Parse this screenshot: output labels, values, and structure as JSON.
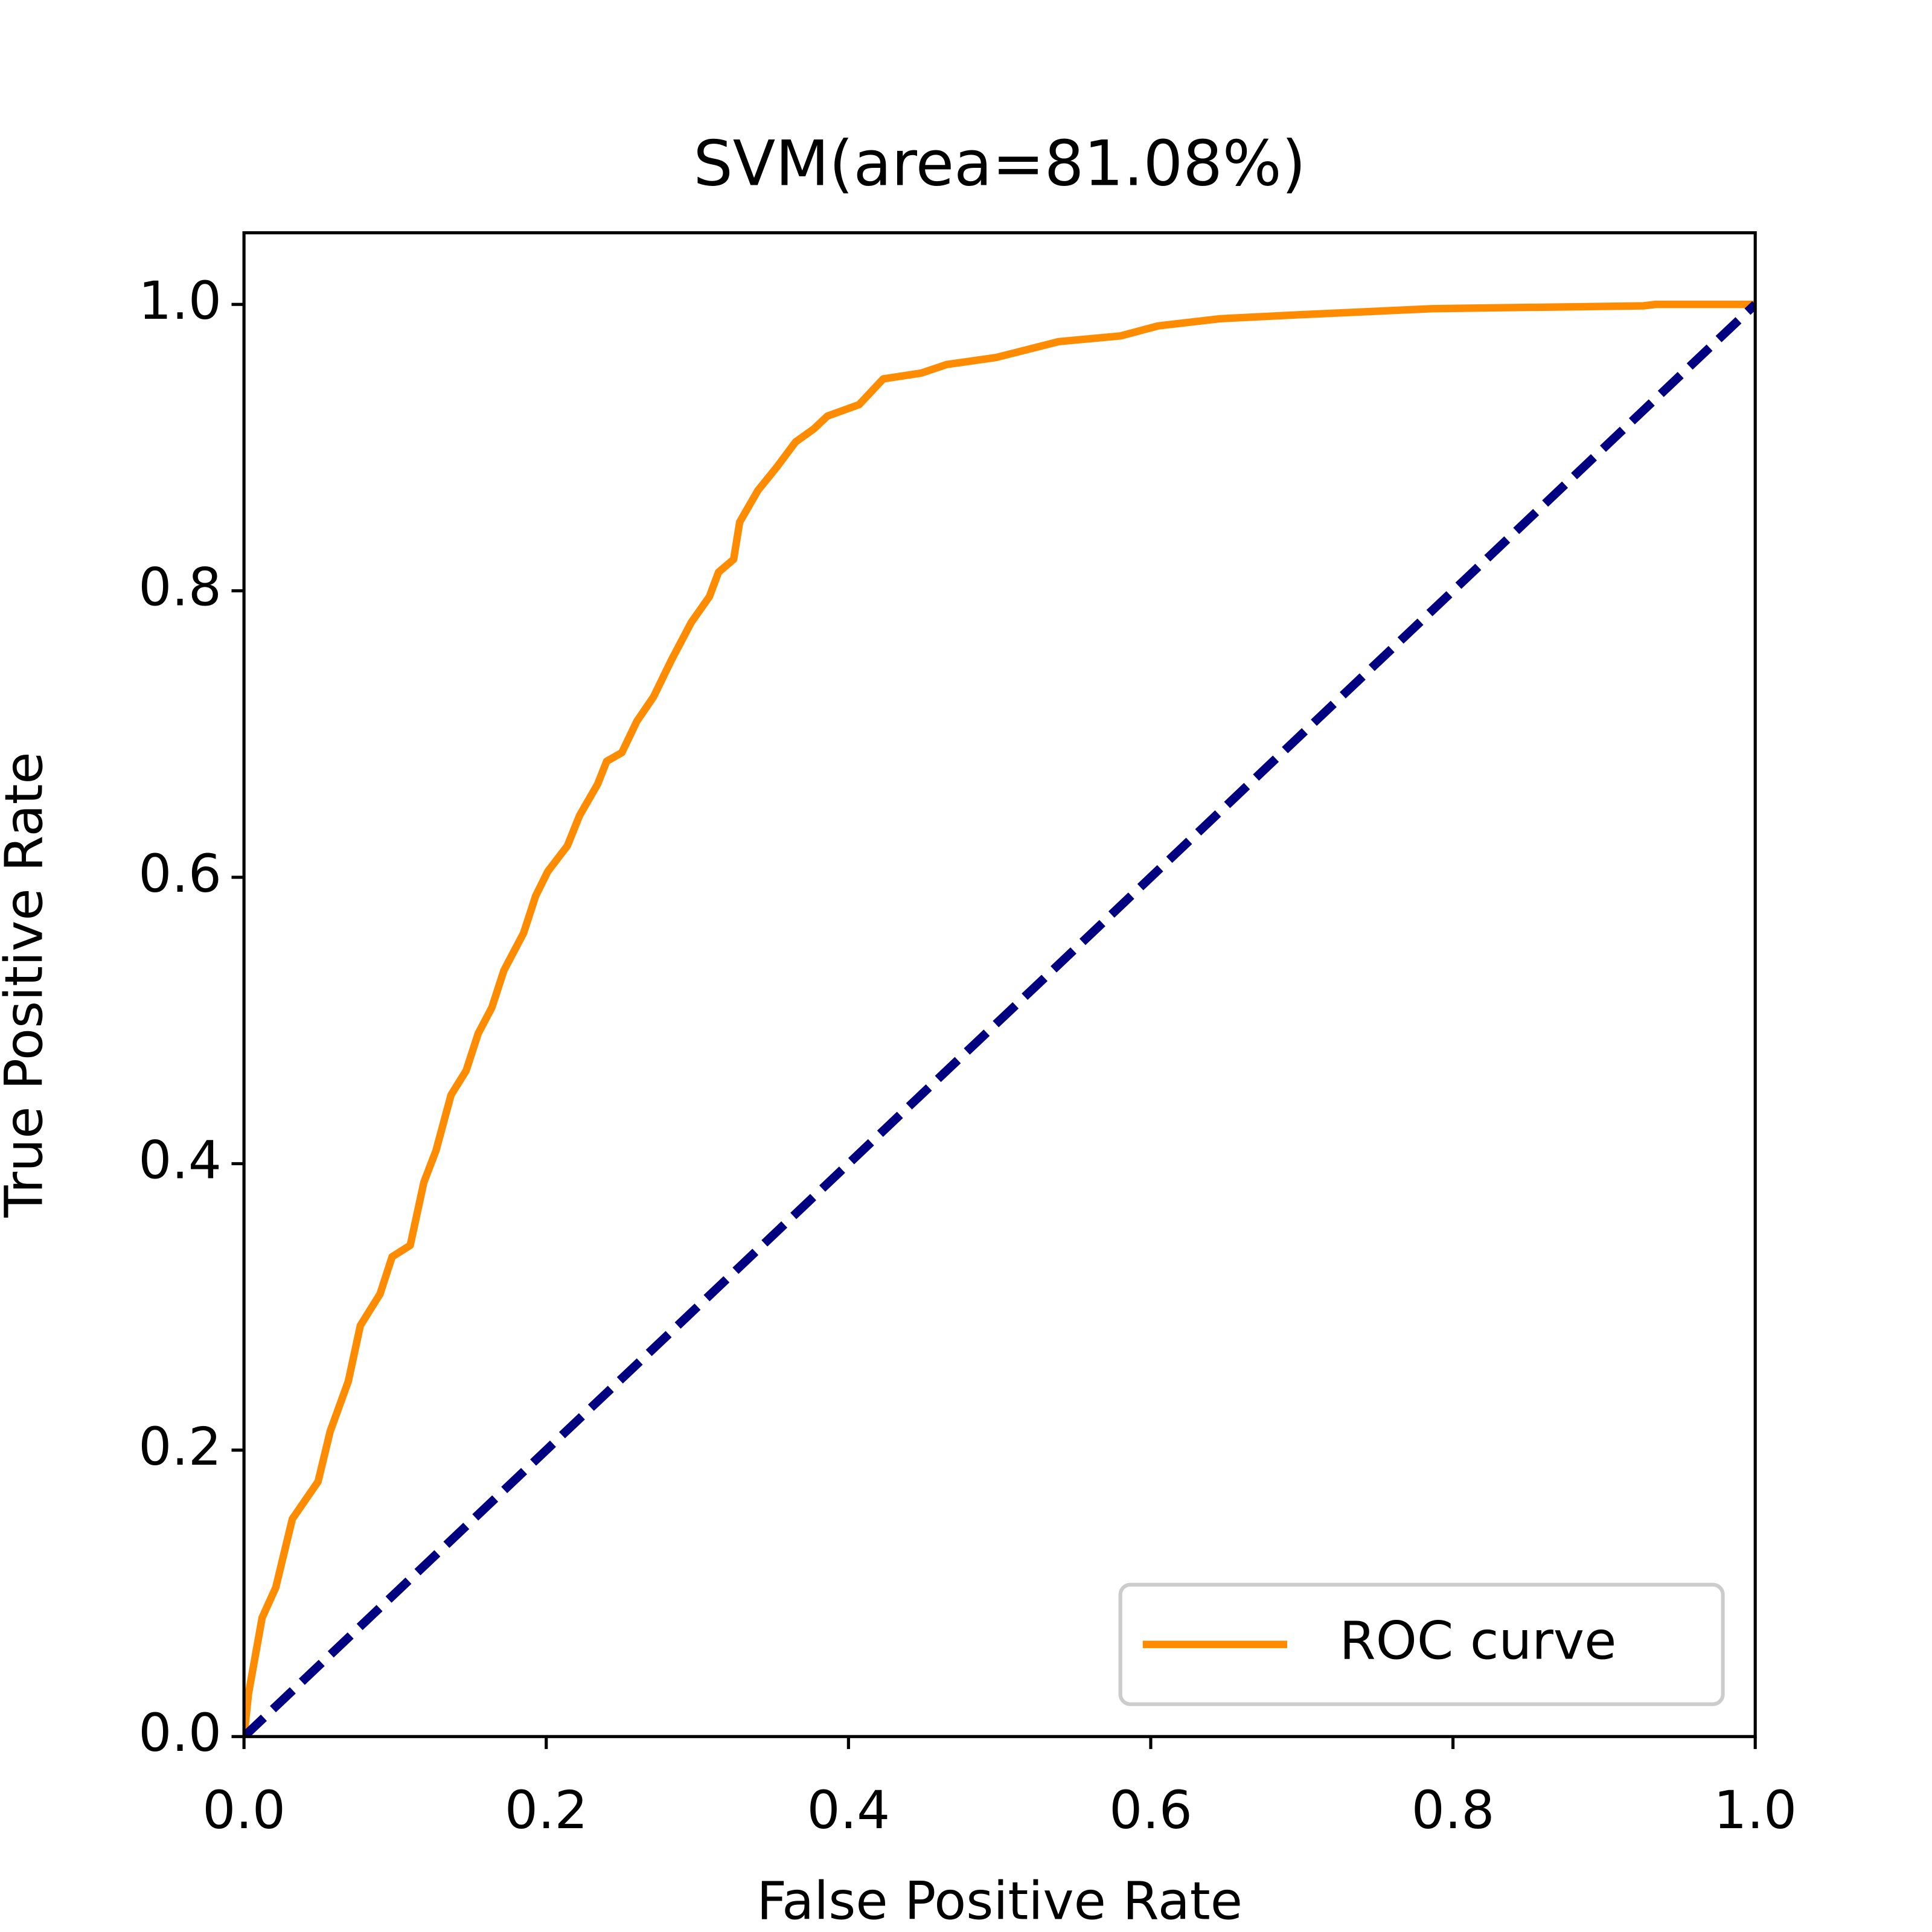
{
  "chart_data": {
    "type": "line",
    "title": "SVM(area=81.08%)",
    "xlabel": "False Positive Rate",
    "ylabel": "True Positive Rate",
    "xlim": [
      0,
      1
    ],
    "ylim": [
      0,
      1.05
    ],
    "xticks": [
      {
        "value": 0,
        "label": "0.0"
      },
      0.2,
      0.4,
      0.6,
      0.8,
      {
        "value": 1,
        "label": "1.0"
      }
    ],
    "yticks": [
      {
        "value": 0,
        "label": "0.0"
      },
      0.2,
      0.4,
      0.6,
      0.8,
      {
        "value": 1,
        "label": "1.0"
      }
    ],
    "legend": "lower right",
    "series": [
      {
        "name": "ROC curve",
        "color": "#ff8c00",
        "x": [
          0,
          0.003,
          0.012,
          0.021,
          0.032,
          0.049,
          0.057,
          0.069,
          0.077,
          0.09,
          0.098,
          0.11,
          0.119,
          0.127,
          0.137,
          0.147,
          0.155,
          0.164,
          0.172,
          0.185,
          0.193,
          0.201,
          0.214,
          0.222,
          0.234,
          0.24,
          0.25,
          0.26,
          0.271,
          0.283,
          0.296,
          0.308,
          0.314,
          0.324,
          0.328,
          0.34,
          0.353,
          0.365,
          0.377,
          0.386,
          0.407,
          0.423,
          0.448,
          0.465,
          0.498,
          0.539,
          0.58,
          0.605,
          0.646,
          0.703,
          0.786,
          0.926,
          0.934,
          1.0
        ],
        "values": [
          0,
          0.03,
          0.083,
          0.104,
          0.152,
          0.178,
          0.213,
          0.248,
          0.287,
          0.309,
          0.335,
          0.343,
          0.387,
          0.409,
          0.448,
          0.465,
          0.491,
          0.509,
          0.535,
          0.561,
          0.587,
          0.604,
          0.622,
          0.643,
          0.665,
          0.681,
          0.687,
          0.709,
          0.726,
          0.752,
          0.778,
          0.796,
          0.813,
          0.822,
          0.848,
          0.87,
          0.887,
          0.904,
          0.913,
          0.922,
          0.93,
          0.948,
          0.952,
          0.958,
          0.963,
          0.974,
          0.978,
          0.985,
          0.99,
          0.993,
          0.997,
          0.999,
          1.0,
          1.0
        ]
      },
      {
        "color": "#000080",
        "linestyle": "--",
        "x": [
          0,
          1
        ],
        "values": [
          0,
          1
        ]
      }
    ]
  }
}
